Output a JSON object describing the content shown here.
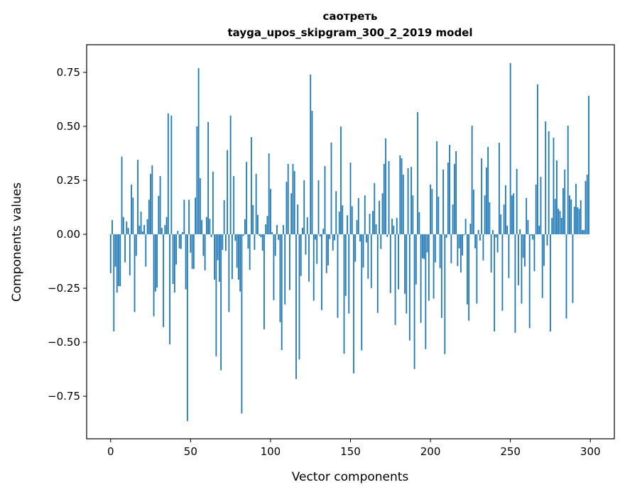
{
  "chart_data": {
    "type": "bar",
    "title": [
      "саотреть",
      "tayga_upos_skipgram_300_2_2019 model"
    ],
    "xlabel": "Vector components",
    "ylabel": "Components values",
    "xlim": [
      -15,
      315
    ],
    "ylim": [
      -0.947,
      0.878
    ],
    "xticks": [
      0,
      50,
      100,
      150,
      200,
      250,
      300
    ],
    "xtick_labels": [
      "0",
      "50",
      "100",
      "150",
      "200",
      "250",
      "300"
    ],
    "yticks": [
      -0.75,
      -0.5,
      -0.25,
      0,
      0.25,
      0.5,
      0.75
    ],
    "ytick_labels": [
      "−0.75",
      "−0.50",
      "−0.25",
      "0.00",
      "0.25",
      "0.50",
      "0.75"
    ],
    "grid": false,
    "bar_color": "#1f77b4",
    "bar_width": 0.8,
    "values": [
      -0.18,
      0.066,
      -0.45,
      -0.15,
      -0.27,
      -0.24,
      -0.24,
      0.36,
      0.08,
      -0.13,
      0.06,
      0.03,
      -0.19,
      0.23,
      0.17,
      -0.36,
      -0.1,
      0.345,
      0.04,
      0.105,
      0.013,
      0.043,
      -0.15,
      0.07,
      0.16,
      0.28,
      0.32,
      -0.38,
      -0.265,
      -0.247,
      0.178,
      0.27,
      0.03,
      -0.43,
      0.043,
      0.08,
      0.56,
      -0.51,
      0.55,
      -0.23,
      -0.27,
      -0.14,
      0.016,
      -0.065,
      -0.068,
      0.01,
      0.16,
      -0.255,
      -0.865,
      0.16,
      -0.085,
      -0.16,
      -0.16,
      0.17,
      0.5,
      0.77,
      0.26,
      0.066,
      -0.1,
      -0.167,
      0.08,
      0.52,
      0.072,
      -0.013,
      0.29,
      -0.21,
      -0.565,
      -0.12,
      -0.22,
      -0.63,
      -0.072,
      0.158,
      -0.076,
      0.39,
      -0.36,
      0.55,
      -0.207,
      0.27,
      -0.03,
      -0.155,
      -0.21,
      -0.265,
      -0.83,
      -0.007,
      0.07,
      0.335,
      -0.066,
      -0.165,
      0.45,
      0.135,
      -0.072,
      0.28,
      0.09,
      -0.007,
      -0.013,
      -0.076,
      -0.44,
      0.046,
      0.085,
      0.375,
      0.21,
      0.01,
      -0.305,
      -0.1,
      0.043,
      -0.026,
      -0.407,
      -0.536,
      0.043,
      -0.325,
      0.243,
      0.326,
      -0.258,
      0.19,
      0.326,
      0.293,
      -0.67,
      0.138,
      -0.58,
      -0.193,
      0.03,
      0.25,
      -0.094,
      0.079,
      -0.219,
      0.74,
      0.572,
      -0.308,
      -0.025,
      -0.137,
      0.25,
      -0.01,
      -0.351,
      0.026,
      0.316,
      -0.18,
      -0.144,
      -0.022,
      0.425,
      -0.075,
      -0.028,
      0.2,
      -0.387,
      0.105,
      0.499,
      0.134,
      -0.553,
      -0.285,
      0.088,
      -0.367,
      0.332,
      0.13,
      -0.644,
      -0.127,
      0.066,
      0.168,
      -0.033,
      -0.538,
      -0.154,
      0.18,
      -0.038,
      -0.206,
      0.095,
      -0.249,
      0.108,
      0.237,
      0.046,
      -0.364,
      0.155,
      -0.068,
      0.19,
      0.326,
      0.444,
      -0.012,
      0.339,
      -0.272,
      0.072,
      0.04,
      -0.42,
      0.076,
      -0.255,
      0.365,
      0.352,
      0.276,
      -0.275,
      -0.367,
      0.306,
      -0.492,
      0.312,
      0.18,
      -0.624,
      -0.232,
      0.566,
      0.102,
      -0.41,
      -0.111,
      -0.114,
      -0.532,
      -0.084,
      -0.308,
      0.23,
      0.21,
      -0.298,
      -0.13,
      0.431,
      0.174,
      -0.157,
      -0.387,
      0.3,
      -0.555,
      -0.016,
      0.332,
      0.414,
      -0.134,
      0.138,
      0.326,
      0.385,
      -0.147,
      -0.065,
      -0.177,
      -0.098,
      -0.005,
      0.072,
      -0.325,
      -0.4,
      0.049,
      0.503,
      0.207,
      -0.065,
      -0.321,
      0.02,
      -0.029,
      0.352,
      -0.121,
      0.18,
      0.309,
      0.405,
      0.148,
      -0.177,
      0.02,
      -0.45,
      -0.015,
      -0.084,
      0.424,
      0.092,
      -0.354,
      0.138,
      0.227,
      0.04,
      -0.203,
      0.793,
      0.18,
      0.19,
      -0.456,
      0.303,
      -0.236,
      0.023,
      -0.321,
      -0.109,
      -0.149,
      0.168,
      0.066,
      -0.434,
      -0.005,
      -0.025,
      -0.171,
      0.23,
      0.694,
      0.04,
      0.266,
      -0.295,
      -0.146,
      0.523,
      -0.052,
      0.477,
      -0.45,
      0.076,
      0.447,
      0.164,
      0.342,
      0.118,
      0.108,
      0.076,
      0.214,
      0.3,
      -0.39,
      0.503,
      0.18,
      0.161,
      -0.318,
      0.128,
      0.234,
      0.125,
      0.118,
      0.158,
      0.02,
      0.02,
      0.247,
      0.276,
      0.641
    ]
  }
}
